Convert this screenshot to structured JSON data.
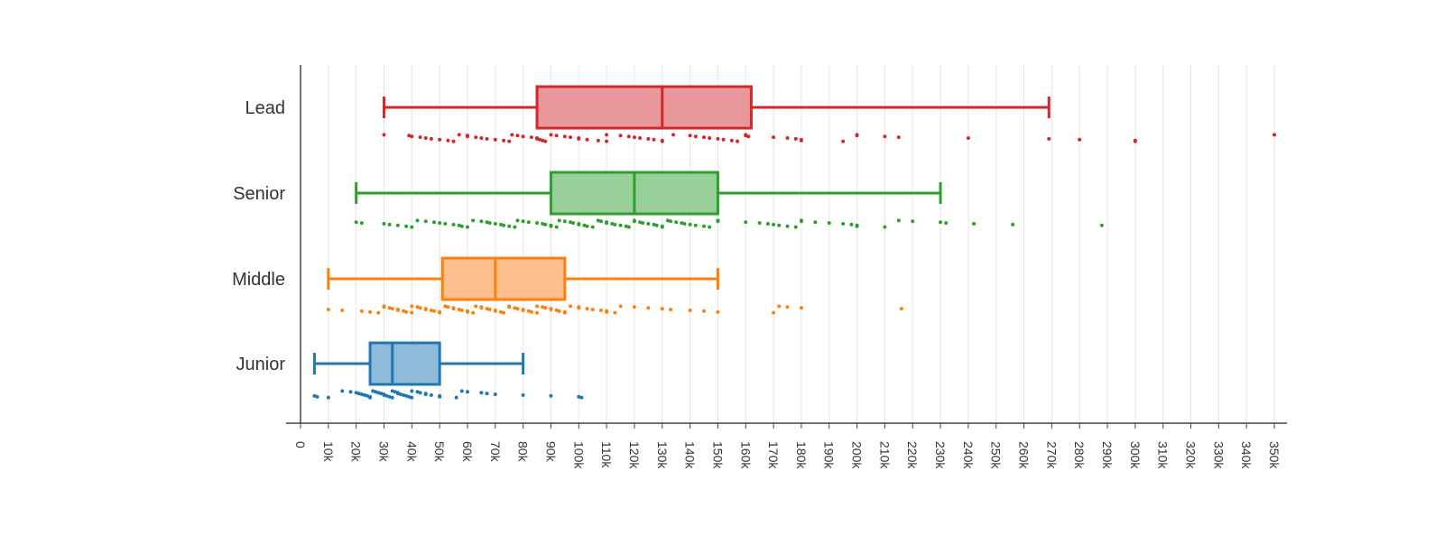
{
  "chart_data": {
    "type": "box",
    "orientation": "horizontal",
    "title": "",
    "xlabel": "",
    "ylabel": "",
    "grid": "vertical",
    "legend": "none",
    "xlim": [
      0,
      350000
    ],
    "x_ticks": [
      0,
      10000,
      20000,
      30000,
      40000,
      50000,
      60000,
      70000,
      80000,
      90000,
      100000,
      110000,
      120000,
      130000,
      140000,
      150000,
      160000,
      170000,
      180000,
      190000,
      200000,
      210000,
      220000,
      230000,
      240000,
      250000,
      260000,
      270000,
      280000,
      290000,
      300000,
      310000,
      320000,
      330000,
      340000,
      350000
    ],
    "x_tick_labels": [
      "0",
      "10k",
      "20k",
      "30k",
      "40k",
      "50k",
      "60k",
      "70k",
      "80k",
      "90k",
      "100k",
      "110k",
      "120k",
      "130k",
      "140k",
      "150k",
      "160k",
      "170k",
      "180k",
      "190k",
      "200k",
      "210k",
      "220k",
      "230k",
      "240k",
      "250k",
      "260k",
      "270k",
      "280k",
      "290k",
      "300k",
      "310k",
      "320k",
      "330k",
      "340k",
      "350k"
    ],
    "categories": [
      "Lead",
      "Senior",
      "Middle",
      "Junior"
    ],
    "series": [
      {
        "category": "Lead",
        "color": "#d62728",
        "fill": "#e8979a",
        "min": 30000,
        "q1": 85000,
        "median": 130000,
        "q3": 162000,
        "max": 269000,
        "points": [
          30000,
          39000,
          40000,
          43000,
          45000,
          47000,
          50000,
          53000,
          55000,
          57000,
          60000,
          60000,
          63000,
          65000,
          67000,
          70000,
          73000,
          75000,
          76000,
          78000,
          80000,
          83000,
          85000,
          85000,
          86000,
          87000,
          88000,
          90000,
          92000,
          95000,
          97000,
          100000,
          100000,
          103000,
          107000,
          110000,
          110000,
          115000,
          118000,
          120000,
          122000,
          125000,
          127000,
          130000,
          130000,
          134000,
          140000,
          142000,
          145000,
          147000,
          150000,
          152000,
          155000,
          157000,
          160000,
          160000,
          161000,
          170000,
          175000,
          178000,
          180000,
          180000,
          195000,
          200000,
          200000,
          210000,
          215000,
          240000,
          269000,
          280000,
          300000,
          300000,
          350000
        ]
      },
      {
        "category": "Senior",
        "color": "#2ca02c",
        "fill": "#98cf98",
        "min": 20000,
        "q1": 90000,
        "median": 120000,
        "q3": 150000,
        "max": 230000,
        "points": [
          20000,
          22000,
          30000,
          32000,
          35000,
          38000,
          40000,
          42000,
          45000,
          48000,
          50000,
          52000,
          55000,
          57000,
          58000,
          60000,
          62000,
          65000,
          67000,
          68000,
          70000,
          72000,
          73000,
          75000,
          77000,
          78000,
          80000,
          82000,
          85000,
          87000,
          88000,
          90000,
          90000,
          92000,
          93000,
          95000,
          97000,
          98000,
          100000,
          100000,
          102000,
          103000,
          105000,
          107000,
          108000,
          110000,
          110000,
          112000,
          113000,
          115000,
          117000,
          118000,
          120000,
          120000,
          122000,
          123000,
          125000,
          127000,
          128000,
          130000,
          130000,
          132000,
          133000,
          135000,
          137000,
          138000,
          140000,
          142000,
          145000,
          147000,
          150000,
          150000,
          160000,
          165000,
          168000,
          170000,
          172000,
          175000,
          178000,
          180000,
          180000,
          185000,
          190000,
          195000,
          198000,
          200000,
          200000,
          210000,
          215000,
          220000,
          230000,
          232000,
          242000,
          256000,
          288000
        ]
      },
      {
        "category": "Middle",
        "color": "#ff7f0e",
        "fill": "#ffbf8c",
        "min": 10000,
        "q1": 51000,
        "median": 70000,
        "q3": 95000,
        "max": 150000,
        "points": [
          10000,
          15000,
          22000,
          25000,
          28000,
          30000,
          30000,
          32000,
          33000,
          35000,
          35000,
          37000,
          38000,
          40000,
          40000,
          42000,
          43000,
          45000,
          45000,
          47000,
          48000,
          50000,
          50000,
          52000,
          53000,
          55000,
          55000,
          57000,
          58000,
          60000,
          60000,
          62000,
          63000,
          65000,
          65000,
          67000,
          68000,
          70000,
          70000,
          72000,
          73000,
          75000,
          75000,
          77000,
          78000,
          80000,
          80000,
          82000,
          83000,
          85000,
          85000,
          87000,
          88000,
          90000,
          90000,
          92000,
          93000,
          95000,
          95000,
          97000,
          100000,
          100000,
          103000,
          105000,
          108000,
          110000,
          110000,
          113000,
          115000,
          120000,
          125000,
          130000,
          133000,
          140000,
          145000,
          150000,
          170000,
          172000,
          175000,
          180000,
          216000
        ]
      },
      {
        "category": "Junior",
        "color": "#1f77b4",
        "fill": "#8fbbdb",
        "min": 5000,
        "q1": 25000,
        "median": 33000,
        "q3": 50000,
        "max": 80000,
        "points": [
          5000,
          6000,
          10000,
          15000,
          18000,
          20000,
          21000,
          22000,
          23000,
          24000,
          25000,
          25000,
          26000,
          27000,
          28000,
          29000,
          30000,
          30000,
          31000,
          32000,
          33000,
          33000,
          34000,
          35000,
          35000,
          36000,
          37000,
          38000,
          39000,
          40000,
          40000,
          42000,
          43000,
          45000,
          45000,
          47000,
          50000,
          50000,
          56000,
          58000,
          60000,
          65000,
          67000,
          70000,
          80000,
          90000,
          100000,
          101000
        ]
      }
    ]
  }
}
